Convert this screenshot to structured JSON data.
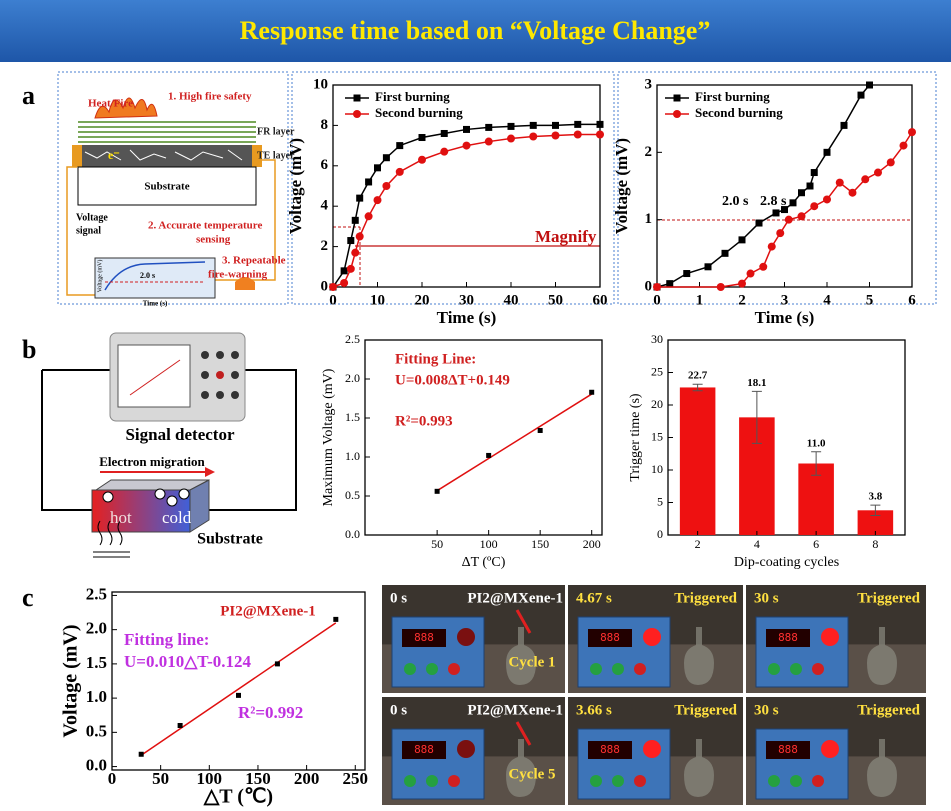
{
  "header": {
    "title": "Response time based on “Voltage Change”"
  },
  "panel_labels": [
    "a",
    "b",
    "c"
  ],
  "schematic_a": {
    "heat": "Heat/Fire",
    "point1": "1. High fire safety",
    "fr_layer": "FR layer",
    "te_layer": "TE layer",
    "substrate": "Substrate",
    "electron": "e⁻",
    "signal": [
      "Voltage",
      "signal"
    ],
    "point2": [
      "2. Accurate temperature",
      "sensing"
    ],
    "point3": [
      "3. Repeatable",
      "fire-warning"
    ],
    "inset_y": "Voltage (mV)",
    "inset_x": "Time (s)",
    "inset_time": "2.0 s"
  },
  "schematic_b": {
    "detector": "Signal detector",
    "migration": "Electron migration",
    "hot": "hot",
    "cold": "cold",
    "substrate": "Substrate"
  },
  "chart_data": [
    {
      "type": "line",
      "x_label": "Time (s)",
      "y_label": "Voltage (mV)",
      "xlim": [
        0,
        60
      ],
      "xticks": [
        0,
        10,
        20,
        30,
        40,
        50,
        60
      ],
      "ylim": [
        0,
        10
      ],
      "yticks": [
        0,
        2,
        4,
        6,
        8,
        10
      ],
      "annotations": [
        "Magnify"
      ],
      "series": [
        {
          "name": "First burning",
          "color": "#000000",
          "marker": "square",
          "x": [
            0,
            2.5,
            4,
            5,
            6,
            8,
            10,
            12,
            15,
            20,
            25,
            30,
            35,
            40,
            45,
            50,
            55,
            60
          ],
          "values": [
            0,
            0.8,
            2.3,
            3.3,
            4.4,
            5.2,
            5.9,
            6.4,
            7.0,
            7.4,
            7.6,
            7.8,
            7.9,
            7.95,
            8.0,
            8.0,
            8.05,
            8.05
          ]
        },
        {
          "name": "Second burning",
          "color": "#e01010",
          "marker": "circle",
          "x": [
            0,
            2.5,
            4,
            5,
            6,
            8,
            10,
            12,
            15,
            20,
            25,
            30,
            35,
            40,
            45,
            50,
            55,
            60
          ],
          "values": [
            0,
            0.2,
            0.9,
            1.7,
            2.5,
            3.5,
            4.3,
            5.0,
            5.7,
            6.3,
            6.7,
            7.0,
            7.2,
            7.35,
            7.45,
            7.5,
            7.55,
            7.55
          ]
        }
      ]
    },
    {
      "type": "line",
      "x_label": "Time (s)",
      "y_label": "Voltage (mV)",
      "xlim": [
        0,
        6
      ],
      "xticks": [
        0,
        1,
        2,
        3,
        4,
        5,
        6
      ],
      "ylim": [
        0,
        3
      ],
      "yticks": [
        0,
        1,
        2,
        3
      ],
      "annotations": [
        "2.0 s",
        "2.8 s"
      ],
      "series": [
        {
          "name": "First burning",
          "color": "#000000",
          "marker": "square",
          "x": [
            0,
            0.3,
            0.7,
            1.2,
            1.6,
            2.0,
            2.4,
            2.8,
            3.0,
            3.2,
            3.4,
            3.6,
            3.7,
            4.0,
            4.4,
            4.8,
            5.0
          ],
          "values": [
            0,
            0.05,
            0.2,
            0.3,
            0.5,
            0.7,
            0.95,
            1.1,
            1.15,
            1.25,
            1.4,
            1.5,
            1.7,
            2.0,
            2.4,
            2.85,
            3.0
          ]
        },
        {
          "name": "Second burning",
          "color": "#e01010",
          "marker": "circle",
          "x": [
            0,
            1.5,
            2.0,
            2.2,
            2.5,
            2.7,
            2.9,
            3.1,
            3.4,
            3.7,
            4.0,
            4.3,
            4.6,
            4.9,
            5.2,
            5.5,
            5.8,
            6.0
          ],
          "values": [
            0,
            0,
            0.05,
            0.2,
            0.3,
            0.6,
            0.8,
            1.0,
            1.05,
            1.2,
            1.3,
            1.55,
            1.4,
            1.6,
            1.7,
            1.85,
            2.1,
            2.3
          ]
        }
      ]
    },
    {
      "type": "scatter",
      "x_label": "ΔT (ºC)",
      "y_label": "Maximum Voltage (mV)",
      "xlim": [
        -20,
        210
      ],
      "xticks": [
        50,
        100,
        150,
        200
      ],
      "ylim": [
        0,
        2.5
      ],
      "yticks": [
        {
          "value": 0,
          "label": "0.0"
        },
        {
          "value": 0.5,
          "label": "0.5"
        },
        {
          "value": 1,
          "label": "1.0"
        },
        {
          "value": 1.5,
          "label": "1.5"
        },
        {
          "value": 2,
          "label": "2.0"
        },
        {
          "value": 2.5,
          "label": "2.5"
        }
      ],
      "annotations": [
        "Fitting Line:",
        "U=0.008ΔT+0.149",
        "R²=0.993"
      ],
      "x": [
        50,
        100,
        150,
        200
      ],
      "values": [
        0.56,
        1.02,
        1.34,
        1.83
      ],
      "color": "#000000",
      "fit_color": "#e01010"
    },
    {
      "type": "bar",
      "x_label": "Dip-coating cycles",
      "y_label": "Trigger time (s)",
      "categories": [
        "2",
        "4",
        "6",
        "8"
      ],
      "values": [
        22.7,
        18.1,
        11.0,
        3.8
      ],
      "value_labels": [
        "22.7",
        "18.1",
        "11.0",
        "3.8"
      ],
      "errors": [
        0.5,
        4.0,
        1.8,
        0.8
      ],
      "color": "#ee1111",
      "ylim": [
        0,
        30
      ],
      "yticks": [
        0,
        5,
        10,
        15,
        20,
        25,
        30
      ]
    },
    {
      "type": "scatter",
      "x_label": "△T (℃)",
      "y_label": "Voltage (mV)",
      "xlim": [
        0,
        260
      ],
      "xticks": [
        0,
        50,
        100,
        150,
        200,
        250
      ],
      "ylim": [
        -0.05,
        2.55
      ],
      "yticks": [
        {
          "value": 0,
          "label": "0.0"
        },
        {
          "value": 0.5,
          "label": "0.5"
        },
        {
          "value": 1,
          "label": "1.0"
        },
        {
          "value": 1.5,
          "label": "1.5"
        },
        {
          "value": 2,
          "label": "2.0"
        },
        {
          "value": 2.5,
          "label": "2.5"
        }
      ],
      "annotations": [
        "PI2@MXene-1",
        "Fitting line:",
        "U=0.010△T-0.124",
        "R²=0.992"
      ],
      "x": [
        30,
        70,
        130,
        170,
        230
      ],
      "values": [
        0.18,
        0.6,
        1.04,
        1.5,
        2.15
      ],
      "color": "#000000",
      "fit_color": "#e01010"
    }
  ],
  "photos": {
    "rows": [
      {
        "label": "PI2@MXene-1",
        "cycle": "Cycle 1",
        "cells": [
          {
            "time": "0 s"
          },
          {
            "time": "4.67 s",
            "status": "Triggered"
          },
          {
            "time": "30 s",
            "status": "Triggered"
          }
        ]
      },
      {
        "label": "PI2@MXene-1",
        "cycle": "Cycle 5",
        "cells": [
          {
            "time": "0 s"
          },
          {
            "time": "3.66 s",
            "status": "Triggered"
          },
          {
            "time": "30 s",
            "status": "Triggered"
          }
        ]
      }
    ]
  }
}
